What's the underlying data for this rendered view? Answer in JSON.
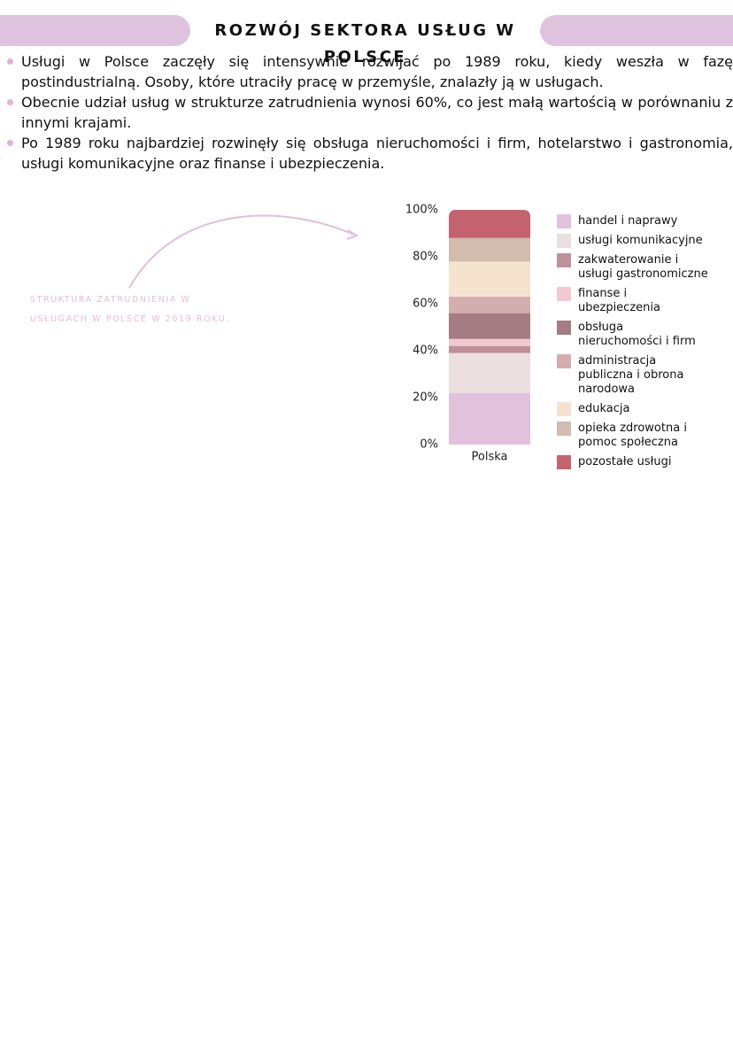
{
  "header": {
    "title": "ROZWÓJ SEKTORA USŁUG W POLSCE"
  },
  "bullets": [
    "Usługi w Polsce zaczęły się intensywnie rozwijać po 1989 roku, kiedy weszła w fazę postindustrialną. Osoby, które utraciły pracę w przemyśle, znalazły ją w usługach.",
    "Obecnie udział usług w strukturze zatrudnienia wynosi 60%, co jest małą wartością w porównaniu z innymi krajami.",
    "Po 1989 roku najbardziej rozwinęły się obsługa nieruchomości i firm, hotelarstwo i gastronomia, usługi komunikacyjne oraz finanse i ubezpieczenia."
  ],
  "chart_data": {
    "type": "stacked_bar",
    "annotation": "STRUKTURA ZATRUDNIENIA W USŁUGACH W POLSCE W 2019 ROKU.",
    "categories": [
      "Polska"
    ],
    "series": [
      {
        "name": "handel i naprawy",
        "color": "#e0c2dd",
        "values": [
          22
        ]
      },
      {
        "name": "usługi komunikacyjne",
        "color": "#ebdfdf",
        "values": [
          17
        ]
      },
      {
        "name": "zakwaterowanie i usługi gastronomiczne",
        "color": "#bf909a",
        "values": [
          3
        ]
      },
      {
        "name": "finanse i ubezpieczenia",
        "color": "#f2c9cf",
        "values": [
          3
        ]
      },
      {
        "name": "obsługa nieruchomości i firm",
        "color": "#a57c82",
        "values": [
          11
        ]
      },
      {
        "name": "administracja publiczna i obrona narodowa",
        "color": "#d4aeae",
        "values": [
          7
        ]
      },
      {
        "name": "edukacja",
        "color": "#f5e3d0",
        "values": [
          15
        ]
      },
      {
        "name": "opieka zdrowotna i pomoc społeczna",
        "color": "#d2bcb0",
        "values": [
          10
        ]
      },
      {
        "name": "pozostałe usługi",
        "color": "#c4636f",
        "values": [
          12
        ]
      }
    ],
    "ylim": [
      0,
      100
    ],
    "yticks": [
      {
        "value": 0,
        "label": "0%"
      },
      {
        "value": 20,
        "label": "20%"
      },
      {
        "value": 40,
        "label": "40%"
      },
      {
        "value": 60,
        "label": "60%"
      },
      {
        "value": 80,
        "label": "80%"
      },
      {
        "value": 100,
        "label": "100%"
      }
    ]
  }
}
